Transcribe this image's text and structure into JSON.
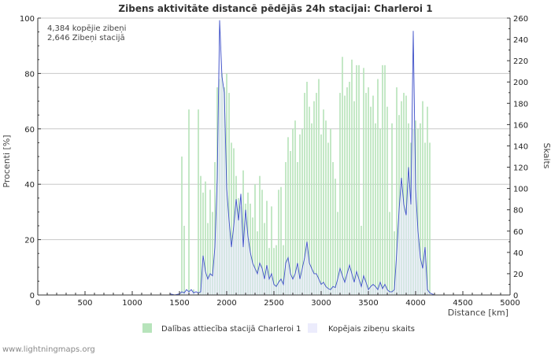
{
  "chart_data": {
    "type": "bar",
    "title": "Zibens aktivitāte distancē pēdējās 24h stacijai: Charleroi 1",
    "xlabel": "Distance   [km]",
    "ylabel_left": "Procenti   [%]",
    "ylabel_right": "Skaits",
    "xlim": [
      0,
      5000
    ],
    "ylim_left": [
      0,
      100
    ],
    "ylim_right": [
      0,
      260
    ],
    "x_ticks": [
      0,
      500,
      1000,
      1500,
      2000,
      2500,
      3000,
      3500,
      4000,
      4500,
      5000
    ],
    "y_left_ticks": [
      0,
      20,
      40,
      60,
      80,
      100
    ],
    "y_right_ticks": [
      0,
      20,
      40,
      60,
      80,
      100,
      120,
      140,
      160,
      180,
      200,
      220,
      240,
      260
    ],
    "grid": true,
    "annotations": [
      "4,384 kopējie zibeņi",
      "2,646 Zibeņi stacijā"
    ],
    "legend_position": "bottom",
    "series": [
      {
        "name": "Dalības attiecība stacijā Charleroi 1",
        "kind": "bar",
        "axis": "left",
        "color": "#b7e4bb",
        "points": [
          [
            1525,
            50
          ],
          [
            1550,
            25
          ],
          [
            1600,
            67
          ],
          [
            1650,
            2
          ],
          [
            1700,
            67
          ],
          [
            1725,
            43
          ],
          [
            1750,
            37
          ],
          [
            1775,
            41
          ],
          [
            1800,
            26
          ],
          [
            1825,
            38
          ],
          [
            1850,
            30
          ],
          [
            1875,
            48
          ],
          [
            1900,
            75
          ],
          [
            1925,
            78
          ],
          [
            1950,
            80
          ],
          [
            1975,
            75
          ],
          [
            2000,
            80
          ],
          [
            2025,
            73
          ],
          [
            2050,
            55
          ],
          [
            2075,
            53
          ],
          [
            2100,
            43
          ],
          [
            2125,
            35
          ],
          [
            2150,
            32
          ],
          [
            2175,
            45
          ],
          [
            2200,
            33
          ],
          [
            2225,
            37
          ],
          [
            2250,
            33
          ],
          [
            2275,
            28
          ],
          [
            2300,
            40
          ],
          [
            2325,
            23
          ],
          [
            2350,
            43
          ],
          [
            2375,
            38
          ],
          [
            2400,
            26
          ],
          [
            2425,
            34
          ],
          [
            2450,
            17
          ],
          [
            2475,
            32
          ],
          [
            2500,
            17
          ],
          [
            2525,
            18
          ],
          [
            2550,
            38
          ],
          [
            2575,
            39
          ],
          [
            2600,
            18
          ],
          [
            2625,
            48
          ],
          [
            2650,
            57
          ],
          [
            2675,
            52
          ],
          [
            2700,
            60
          ],
          [
            2725,
            63
          ],
          [
            2750,
            48
          ],
          [
            2775,
            58
          ],
          [
            2800,
            60
          ],
          [
            2825,
            73
          ],
          [
            2850,
            77
          ],
          [
            2875,
            68
          ],
          [
            2900,
            62
          ],
          [
            2925,
            70
          ],
          [
            2950,
            73
          ],
          [
            2975,
            78
          ],
          [
            3000,
            58
          ],
          [
            3025,
            67
          ],
          [
            3050,
            63
          ],
          [
            3075,
            55
          ],
          [
            3100,
            60
          ],
          [
            3125,
            48
          ],
          [
            3150,
            42
          ],
          [
            3175,
            30
          ],
          [
            3200,
            73
          ],
          [
            3225,
            86
          ],
          [
            3250,
            72
          ],
          [
            3275,
            75
          ],
          [
            3300,
            77
          ],
          [
            3325,
            85
          ],
          [
            3350,
            70
          ],
          [
            3375,
            83
          ],
          [
            3400,
            83
          ],
          [
            3425,
            25
          ],
          [
            3450,
            82
          ],
          [
            3475,
            73
          ],
          [
            3500,
            75
          ],
          [
            3525,
            68
          ],
          [
            3550,
            72
          ],
          [
            3575,
            62
          ],
          [
            3600,
            78
          ],
          [
            3625,
            60
          ],
          [
            3650,
            83
          ],
          [
            3675,
            83
          ],
          [
            3700,
            68
          ],
          [
            3725,
            30
          ],
          [
            3750,
            62
          ],
          [
            3775,
            23
          ],
          [
            3800,
            75
          ],
          [
            3825,
            65
          ],
          [
            3850,
            70
          ],
          [
            3875,
            73
          ],
          [
            3900,
            72
          ],
          [
            3925,
            62
          ],
          [
            3950,
            55
          ],
          [
            3975,
            60
          ],
          [
            4000,
            63
          ],
          [
            4025,
            60
          ],
          [
            4050,
            62
          ],
          [
            4075,
            70
          ],
          [
            4100,
            55
          ],
          [
            4125,
            68
          ],
          [
            4150,
            55
          ]
        ]
      },
      {
        "name": "Kopējais zibeņu skaits",
        "kind": "line",
        "axis": "right",
        "color": "#3f51c8",
        "fill": "#e6e6fb",
        "points": [
          [
            1400,
            1
          ],
          [
            1450,
            0
          ],
          [
            1500,
            1
          ],
          [
            1525,
            3
          ],
          [
            1550,
            2
          ],
          [
            1575,
            5
          ],
          [
            1600,
            3
          ],
          [
            1625,
            5
          ],
          [
            1650,
            2
          ],
          [
            1675,
            3
          ],
          [
            1700,
            2
          ],
          [
            1725,
            3
          ],
          [
            1750,
            37
          ],
          [
            1775,
            22
          ],
          [
            1800,
            15
          ],
          [
            1825,
            20
          ],
          [
            1850,
            18
          ],
          [
            1875,
            45
          ],
          [
            1900,
            110
          ],
          [
            1925,
            258
          ],
          [
            1950,
            205
          ],
          [
            1975,
            190
          ],
          [
            2000,
            100
          ],
          [
            2025,
            70
          ],
          [
            2050,
            45
          ],
          [
            2075,
            65
          ],
          [
            2100,
            90
          ],
          [
            2125,
            70
          ],
          [
            2150,
            95
          ],
          [
            2175,
            45
          ],
          [
            2200,
            80
          ],
          [
            2225,
            55
          ],
          [
            2250,
            40
          ],
          [
            2275,
            30
          ],
          [
            2300,
            25
          ],
          [
            2325,
            20
          ],
          [
            2350,
            30
          ],
          [
            2375,
            25
          ],
          [
            2400,
            15
          ],
          [
            2425,
            28
          ],
          [
            2450,
            15
          ],
          [
            2475,
            20
          ],
          [
            2500,
            10
          ],
          [
            2525,
            8
          ],
          [
            2550,
            12
          ],
          [
            2575,
            15
          ],
          [
            2600,
            10
          ],
          [
            2625,
            30
          ],
          [
            2650,
            35
          ],
          [
            2675,
            20
          ],
          [
            2700,
            15
          ],
          [
            2725,
            20
          ],
          [
            2750,
            30
          ],
          [
            2775,
            15
          ],
          [
            2800,
            25
          ],
          [
            2825,
            35
          ],
          [
            2850,
            50
          ],
          [
            2875,
            30
          ],
          [
            2900,
            25
          ],
          [
            2925,
            20
          ],
          [
            2950,
            20
          ],
          [
            2975,
            15
          ],
          [
            3000,
            10
          ],
          [
            3025,
            12
          ],
          [
            3050,
            8
          ],
          [
            3075,
            6
          ],
          [
            3100,
            5
          ],
          [
            3125,
            8
          ],
          [
            3150,
            7
          ],
          [
            3175,
            15
          ],
          [
            3200,
            25
          ],
          [
            3225,
            18
          ],
          [
            3250,
            12
          ],
          [
            3275,
            20
          ],
          [
            3300,
            28
          ],
          [
            3325,
            20
          ],
          [
            3350,
            12
          ],
          [
            3375,
            22
          ],
          [
            3400,
            15
          ],
          [
            3425,
            8
          ],
          [
            3450,
            18
          ],
          [
            3475,
            12
          ],
          [
            3500,
            5
          ],
          [
            3525,
            8
          ],
          [
            3550,
            10
          ],
          [
            3575,
            8
          ],
          [
            3600,
            5
          ],
          [
            3625,
            12
          ],
          [
            3650,
            6
          ],
          [
            3675,
            10
          ],
          [
            3700,
            5
          ],
          [
            3725,
            3
          ],
          [
            3750,
            3
          ],
          [
            3775,
            5
          ],
          [
            3800,
            40
          ],
          [
            3825,
            80
          ],
          [
            3850,
            110
          ],
          [
            3875,
            85
          ],
          [
            3900,
            75
          ],
          [
            3925,
            120
          ],
          [
            3950,
            85
          ],
          [
            3975,
            248
          ],
          [
            4000,
            100
          ],
          [
            4025,
            60
          ],
          [
            4050,
            35
          ],
          [
            4075,
            25
          ],
          [
            4100,
            45
          ],
          [
            4125,
            5
          ],
          [
            4150,
            2
          ],
          [
            4200,
            0
          ],
          [
            5000,
            0
          ]
        ]
      }
    ]
  },
  "footer": {
    "credit": "www.lightningmaps.org"
  }
}
